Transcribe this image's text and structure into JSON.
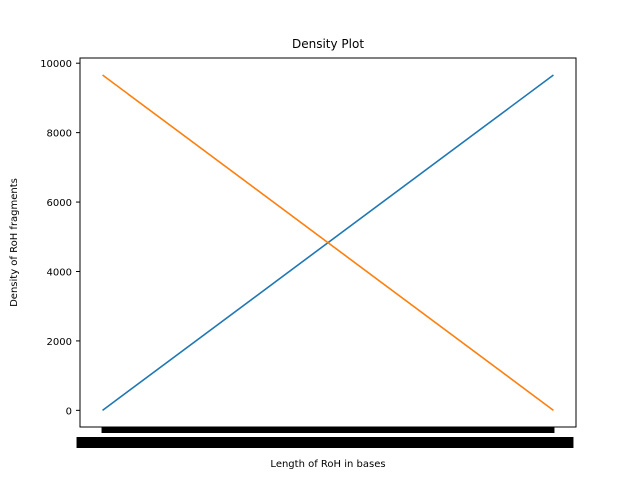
{
  "chart_data": {
    "type": "line",
    "title": "Density Plot",
    "xlabel": "Length of RoH in bases",
    "ylabel": "Density of RoH fragments",
    "ylim": [
      -480,
      10150
    ],
    "xlim": [
      -0.05,
      1.05
    ],
    "x_tick_labels_note": "dense overlapping tick labels rendered as a solid black band",
    "y_ticks": [
      0,
      2000,
      4000,
      6000,
      8000,
      10000
    ],
    "y_tick_labels": [
      "0",
      "2000",
      "4000",
      "6000",
      "8000",
      "10000"
    ],
    "series": [
      {
        "color": "#1f77b4",
        "x": [
          0,
          1
        ],
        "y": [
          0,
          9660
        ]
      },
      {
        "color": "#ff7f0e",
        "x": [
          0,
          1
        ],
        "y": [
          9660,
          0
        ]
      }
    ],
    "grid": false,
    "legend": "none"
  }
}
